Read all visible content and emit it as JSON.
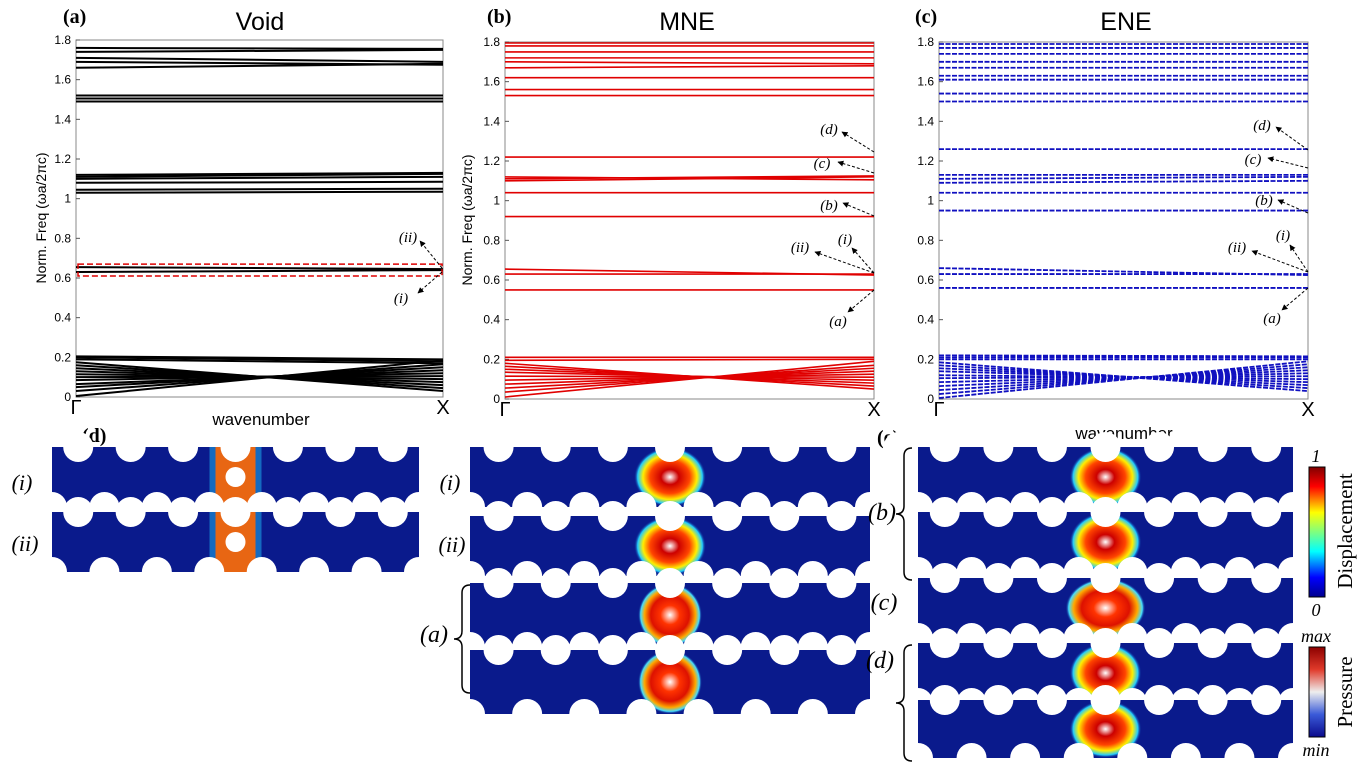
{
  "chart_data": [
    {
      "type": "line",
      "panel_label": "(a)",
      "title": "Void",
      "xlabel": "wavenumber",
      "ylabel": "Norm. Freq (ωa/2πc)",
      "x_ticks": [
        "Γ",
        "X"
      ],
      "ylim": [
        0,
        1.8
      ],
      "y_ticks": [
        "0",
        "0.2",
        "0.4",
        "0.6",
        "0.8",
        "1",
        "1.2",
        "1.4",
        "1.6",
        "1.8"
      ],
      "color": "#000000",
      "bands": [
        {
          "start": 0.005,
          "end": 0.185
        },
        {
          "start": 0.03,
          "end": 0.165
        },
        {
          "start": 0.05,
          "end": 0.15
        },
        {
          "start": 0.065,
          "end": 0.135
        },
        {
          "start": 0.085,
          "end": 0.12
        },
        {
          "start": 0.1,
          "end": 0.105
        },
        {
          "start": 0.115,
          "end": 0.09
        },
        {
          "start": 0.13,
          "end": 0.075
        },
        {
          "start": 0.145,
          "end": 0.06
        },
        {
          "start": 0.16,
          "end": 0.045
        },
        {
          "start": 0.175,
          "end": 0.03
        },
        {
          "start": 0.19,
          "end": 0.17
        },
        {
          "start": 0.2,
          "end": 0.18
        },
        {
          "start": 0.205,
          "end": 0.19
        },
        {
          "start": 0.63,
          "end": 0.64
        },
        {
          "start": 0.655,
          "end": 0.645
        },
        {
          "start": 1.03,
          "end": 1.035
        },
        {
          "start": 1.045,
          "end": 1.05
        },
        {
          "start": 1.08,
          "end": 1.085
        },
        {
          "start": 1.1,
          "end": 1.11
        },
        {
          "start": 1.11,
          "end": 1.125
        },
        {
          "start": 1.12,
          "end": 1.13
        },
        {
          "start": 1.49,
          "end": 1.49
        },
        {
          "start": 1.505,
          "end": 1.505
        },
        {
          "start": 1.52,
          "end": 1.52
        },
        {
          "start": 1.66,
          "end": 1.68
        },
        {
          "start": 1.69,
          "end": 1.675
        },
        {
          "start": 1.71,
          "end": 1.69
        },
        {
          "start": 1.74,
          "end": 1.75
        },
        {
          "start": 1.76,
          "end": 1.755
        }
      ],
      "annotations": [
        "(ii)",
        "(i)"
      ],
      "highlight_box": {
        "ymin": 0.61,
        "ymax": 0.67,
        "color": "#dd0000"
      }
    },
    {
      "type": "line",
      "panel_label": "(b)",
      "title": "MNE",
      "xlabel": "",
      "ylabel": "Norm. Freq (ωa/2πc)",
      "x_ticks": [
        "Γ",
        "X"
      ],
      "ylim": [
        0,
        1.8
      ],
      "y_ticks": [
        "0",
        "0.2",
        "0.4",
        "0.6",
        "0.8",
        "1",
        "1.2",
        "1.4",
        "1.6",
        "1.8"
      ],
      "color": "#e00000",
      "bands": [
        {
          "start": 0.01,
          "end": 0.19
        },
        {
          "start": 0.035,
          "end": 0.17
        },
        {
          "start": 0.055,
          "end": 0.155
        },
        {
          "start": 0.075,
          "end": 0.14
        },
        {
          "start": 0.095,
          "end": 0.125
        },
        {
          "start": 0.115,
          "end": 0.11
        },
        {
          "start": 0.135,
          "end": 0.095
        },
        {
          "start": 0.15,
          "end": 0.08
        },
        {
          "start": 0.165,
          "end": 0.065
        },
        {
          "start": 0.18,
          "end": 0.05
        },
        {
          "start": 0.195,
          "end": 0.2
        },
        {
          "start": 0.21,
          "end": 0.21
        },
        {
          "start": 0.55,
          "end": 0.55
        },
        {
          "start": 0.63,
          "end": 0.63
        },
        {
          "start": 0.655,
          "end": 0.625
        },
        {
          "start": 0.92,
          "end": 0.92
        },
        {
          "start": 1.04,
          "end": 1.04
        },
        {
          "start": 1.1,
          "end": 1.12
        },
        {
          "start": 1.11,
          "end": 1.125
        },
        {
          "start": 1.12,
          "end": 1.105
        },
        {
          "start": 1.22,
          "end": 1.22
        },
        {
          "start": 1.53,
          "end": 1.53
        },
        {
          "start": 1.56,
          "end": 1.56
        },
        {
          "start": 1.62,
          "end": 1.62
        },
        {
          "start": 1.67,
          "end": 1.68
        },
        {
          "start": 1.7,
          "end": 1.69
        },
        {
          "start": 1.72,
          "end": 1.72
        },
        {
          "start": 1.75,
          "end": 1.75
        },
        {
          "start": 1.78,
          "end": 1.78
        },
        {
          "start": 1.795,
          "end": 1.795
        }
      ],
      "annotations": [
        "(d)",
        "(c)",
        "(b)",
        "(i)",
        "(ii)",
        "(a)"
      ]
    },
    {
      "type": "line",
      "panel_label": "(c)",
      "title": "ENE",
      "xlabel": "wavenumber",
      "ylabel": "",
      "x_ticks": [
        "Γ",
        "X"
      ],
      "ylim": [
        0,
        1.8
      ],
      "y_ticks": [
        "0",
        "0.2",
        "0.4",
        "0.6",
        "0.8",
        "1",
        "1.2",
        "1.4",
        "1.6",
        "1.8"
      ],
      "color": "#1010c0",
      "bands": [
        {
          "start": 0.005,
          "end": 0.19
        },
        {
          "start": 0.025,
          "end": 0.175
        },
        {
          "start": 0.045,
          "end": 0.16
        },
        {
          "start": 0.065,
          "end": 0.145
        },
        {
          "start": 0.085,
          "end": 0.13
        },
        {
          "start": 0.105,
          "end": 0.115
        },
        {
          "start": 0.12,
          "end": 0.1
        },
        {
          "start": 0.14,
          "end": 0.085
        },
        {
          "start": 0.155,
          "end": 0.07
        },
        {
          "start": 0.17,
          "end": 0.055
        },
        {
          "start": 0.185,
          "end": 0.04
        },
        {
          "start": 0.2,
          "end": 0.2
        },
        {
          "start": 0.21,
          "end": 0.21
        },
        {
          "start": 0.22,
          "end": 0.215
        },
        {
          "start": 0.56,
          "end": 0.56
        },
        {
          "start": 0.63,
          "end": 0.63
        },
        {
          "start": 0.66,
          "end": 0.625
        },
        {
          "start": 0.95,
          "end": 0.95
        },
        {
          "start": 1.04,
          "end": 1.04
        },
        {
          "start": 1.09,
          "end": 1.1
        },
        {
          "start": 1.11,
          "end": 1.12
        },
        {
          "start": 1.13,
          "end": 1.13
        },
        {
          "start": 1.26,
          "end": 1.26
        },
        {
          "start": 1.5,
          "end": 1.5
        },
        {
          "start": 1.54,
          "end": 1.54
        },
        {
          "start": 1.61,
          "end": 1.61
        },
        {
          "start": 1.63,
          "end": 1.63
        },
        {
          "start": 1.67,
          "end": 1.67
        },
        {
          "start": 1.7,
          "end": 1.7
        },
        {
          "start": 1.74,
          "end": 1.74
        },
        {
          "start": 1.77,
          "end": 1.77
        },
        {
          "start": 1.79,
          "end": 1.79
        }
      ],
      "annotations": [
        "(d)",
        "(c)",
        "(b)",
        "(i)",
        "(ii)",
        "(a)"
      ]
    }
  ],
  "field_panels": {
    "d_label": "(d)",
    "e_label": "(e)",
    "wavenumber_caption": "wavenumber",
    "void_rows": [
      "(i)",
      "(ii)"
    ],
    "mne_rows": [
      "(i)",
      "(ii)",
      "(a)"
    ],
    "ene_rows": [
      "(b)",
      "(c)",
      "(d)"
    ]
  },
  "colorbars": {
    "displacement": {
      "label": "Displacement",
      "max": "1",
      "min": "0"
    },
    "pressure": {
      "label": "Pressure",
      "max": "max",
      "min": "min"
    }
  },
  "colors": {
    "void": "#000000",
    "mne": "#e00000",
    "ene": "#1010c0",
    "field_bg": "#0a1a8c"
  }
}
